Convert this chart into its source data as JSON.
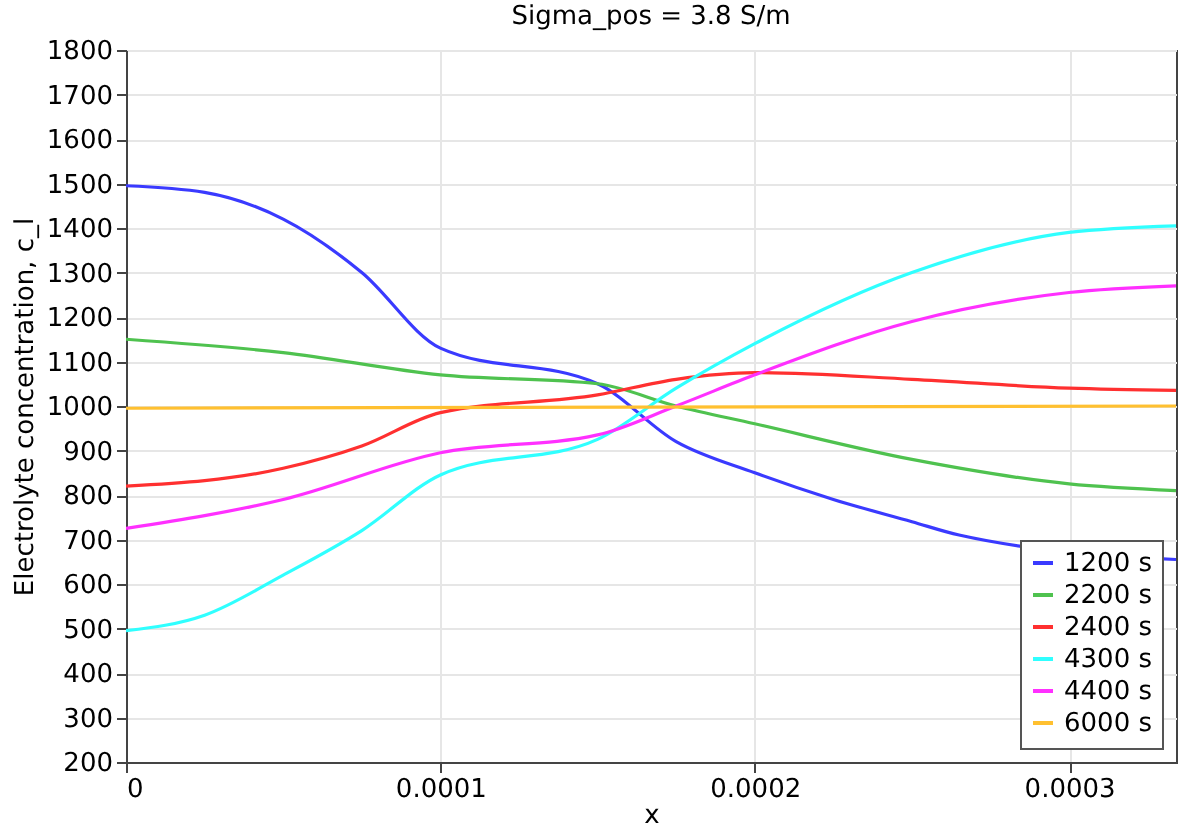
{
  "chart_data": {
    "type": "line",
    "title": "Sigma_pos = 3.8 S/m",
    "xlabel": "x",
    "ylabel": "Electrolyte concentration, c_l",
    "xlim": [
      0,
      0.000334
    ],
    "xticks": [
      0,
      0.0001,
      0.0002,
      0.0003
    ],
    "ylim": [
      200,
      1800
    ],
    "yticks": [
      200,
      300,
      400,
      500,
      600,
      700,
      800,
      900,
      1000,
      1100,
      1200,
      1300,
      1400,
      1500,
      1600,
      1700,
      1800
    ],
    "grid": true,
    "legend": "bottom right",
    "marker": "none",
    "line_style": "solid",
    "series": [
      {
        "name": "1200 s",
        "color": "#3a3aff",
        "x": [
          0,
          2.5e-05,
          5e-05,
          7.5e-05,
          0.0001,
          0.00015,
          0.000175,
          0.0002,
          0.000225,
          0.00025,
          0.000265,
          0.000334
        ],
        "values": [
          1495,
          1480,
          1420,
          1300,
          1130,
          1050,
          920,
          850,
          790,
          740,
          710,
          655
        ]
      },
      {
        "name": "2200 s",
        "color": "#4fc24f",
        "x": [
          0,
          5e-05,
          0.0001,
          0.00015,
          0.000175,
          0.0002,
          0.00025,
          0.0003,
          0.000334
        ],
        "values": [
          1150,
          1120,
          1070,
          1050,
          1000,
          960,
          880,
          825,
          810
        ]
      },
      {
        "name": "2400 s",
        "color": "#ff3030",
        "x": [
          0,
          5e-05,
          7.5e-05,
          0.0001,
          0.00015,
          0.000175,
          0.0002,
          0.00025,
          0.0003,
          0.000334
        ],
        "values": [
          820,
          860,
          910,
          985,
          1025,
          1060,
          1075,
          1060,
          1040,
          1035
        ]
      },
      {
        "name": "4300 s",
        "color": "#30ffff",
        "x": [
          0,
          2.5e-05,
          5e-05,
          7.5e-05,
          0.0001,
          0.00015,
          0.000175,
          0.0002,
          0.00025,
          0.0003,
          0.000334
        ],
        "values": [
          495,
          530,
          620,
          720,
          845,
          925,
          1040,
          1140,
          1300,
          1390,
          1405
        ]
      },
      {
        "name": "4400 s",
        "color": "#ff30ff",
        "x": [
          0,
          5e-05,
          0.0001,
          0.00015,
          0.000175,
          0.0002,
          0.00025,
          0.0003,
          0.000334
        ],
        "values": [
          725,
          790,
          895,
          935,
          1000,
          1070,
          1190,
          1255,
          1270
        ]
      },
      {
        "name": "6000 s",
        "color": "#ffc030",
        "x": [
          0,
          0.000334
        ],
        "values": [
          995,
          1000
        ]
      }
    ]
  }
}
